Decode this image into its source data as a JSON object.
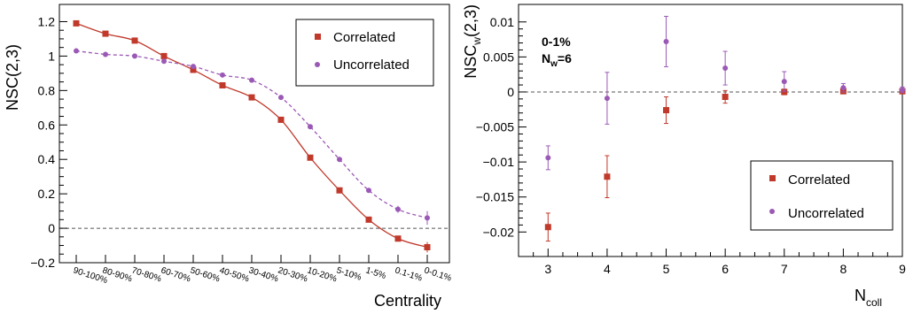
{
  "colors": {
    "correlated": "#c0392b",
    "uncorrelated": "#9b59b6",
    "zero_line": "#555555"
  },
  "chart_data": [
    {
      "type": "line",
      "xlabel": "Centrality",
      "ylabel": "NSC(2,3)",
      "categories": [
        "90-100%",
        "80-90%",
        "70-80%",
        "60-70%",
        "50-60%",
        "40-50%",
        "30-40%",
        "20-30%",
        "10-20%",
        "5-10%",
        "1-5%",
        "0.1-1%",
        "0-0.1%"
      ],
      "ylim": [
        -0.2,
        1.3
      ],
      "yticks": [
        -0.2,
        0,
        0.2,
        0.4,
        0.6,
        0.8,
        1,
        1.2
      ],
      "ytick_labels": [
        "−0.2",
        "0",
        "0.2",
        "0.4",
        "0.6",
        "0.8",
        "1",
        "1.2"
      ],
      "reference_line_y": 0,
      "legend_position": "top-right",
      "series": [
        {
          "name": "Correlated",
          "marker": "square",
          "line": "solid",
          "values": [
            1.19,
            1.13,
            1.09,
            1.0,
            0.92,
            0.83,
            0.76,
            0.63,
            0.41,
            0.22,
            0.05,
            -0.06,
            -0.11
          ],
          "errors": [
            0.01,
            0.01,
            0.01,
            0.01,
            0.01,
            0.01,
            0.01,
            0.01,
            0.01,
            0.01,
            0.01,
            0.01,
            0.03
          ]
        },
        {
          "name": "Uncorrelated",
          "marker": "circle",
          "line": "dashed",
          "values": [
            1.03,
            1.01,
            1.0,
            0.97,
            0.94,
            0.89,
            0.86,
            0.76,
            0.59,
            0.4,
            0.22,
            0.11,
            0.06
          ],
          "errors": [
            0.005,
            0.005,
            0.005,
            0.005,
            0.005,
            0.005,
            0.005,
            0.005,
            0.005,
            0.005,
            0.01,
            0.02,
            0.04
          ]
        }
      ]
    },
    {
      "type": "scatter",
      "xlabel_main": "N",
      "xlabel_sub": "coll",
      "ylabel_main": "NSC",
      "ylabel_sub": "w",
      "ylabel_tail": "(2,3)",
      "annotation_line1": "0-1%",
      "annotation_line2_main": "N",
      "annotation_line2_sub": "w",
      "annotation_line2_tail": "=6",
      "xlim": [
        2.5,
        9
      ],
      "ylim": [
        -0.0235,
        0.0125
      ],
      "xticks": [
        3,
        4,
        5,
        6,
        7,
        8,
        9
      ],
      "xtick_labels": [
        "3",
        "4",
        "5",
        "6",
        "7",
        "8",
        "9"
      ],
      "yticks": [
        -0.02,
        -0.015,
        -0.01,
        -0.005,
        0,
        0.005,
        0.01
      ],
      "ytick_labels": [
        "−0.02",
        "−0.015",
        "−0.01",
        "−0.005",
        "0",
        "0.005",
        "0.01"
      ],
      "reference_line_y": 0,
      "legend_position": "bottom-right",
      "series": [
        {
          "name": "Correlated",
          "marker": "square",
          "x": [
            3,
            4,
            5,
            6,
            7,
            8,
            9
          ],
          "values": [
            -0.0193,
            -0.0121,
            -0.0026,
            -0.0007,
            0.0,
            0.0001,
            0.0001
          ],
          "errors": [
            0.002,
            0.003,
            0.0019,
            0.0009,
            0.0004,
            0.0003,
            0.0003
          ]
        },
        {
          "name": "Uncorrelated",
          "marker": "circle",
          "x": [
            3,
            4,
            5,
            6,
            7,
            8,
            9
          ],
          "values": [
            -0.0094,
            -0.0009,
            0.0072,
            0.0034,
            0.0015,
            0.0006,
            0.0003
          ],
          "errors": [
            0.0017,
            0.0037,
            0.0036,
            0.0024,
            0.0014,
            0.0006,
            0.0004
          ]
        }
      ]
    }
  ]
}
